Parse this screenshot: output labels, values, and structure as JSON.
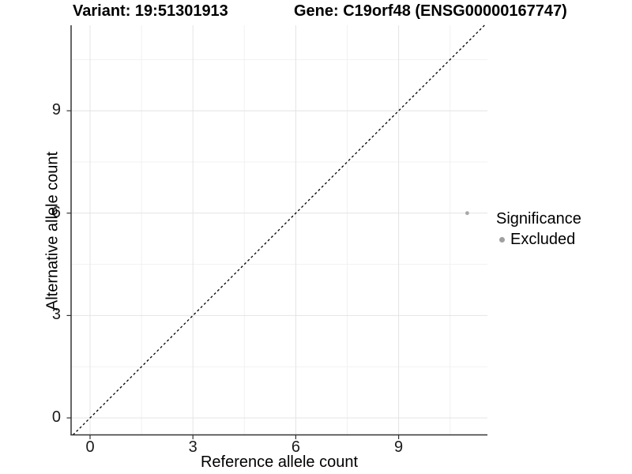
{
  "header": {
    "variant_title": "Variant: 19:51301913",
    "gene_title": "Gene: C19orf48 (ENSG00000167747)"
  },
  "chart_data": {
    "type": "scatter",
    "xlabel": "Reference allele count",
    "ylabel": "Alternative allele count",
    "x_ticks": [
      0,
      3,
      6,
      9
    ],
    "y_ticks": [
      0,
      3,
      6,
      9
    ],
    "x_minor_ticks": [
      1.5,
      4.5,
      7.5,
      10.5
    ],
    "y_minor_ticks": [
      1.5,
      4.5,
      7.5,
      10.5
    ],
    "xlim": [
      -0.6,
      11.6
    ],
    "ylim": [
      -0.5,
      11.5
    ],
    "grid": true,
    "points": [
      {
        "x": 11,
        "y": 6,
        "series": "Excluded"
      }
    ],
    "reference_line": {
      "type": "identity",
      "equation": "y = x",
      "style": "dashed"
    },
    "colors": {
      "point": "#a8a8a8",
      "grid_major": "#e4e4e4",
      "grid_minor": "#f1f1f1",
      "axis_line": "#333333",
      "dashed_line": "#000000"
    },
    "legend_position": "right"
  },
  "legend": {
    "title": "Significance",
    "items": [
      {
        "label": "Excluded",
        "color": "#a0a0a0"
      }
    ]
  }
}
